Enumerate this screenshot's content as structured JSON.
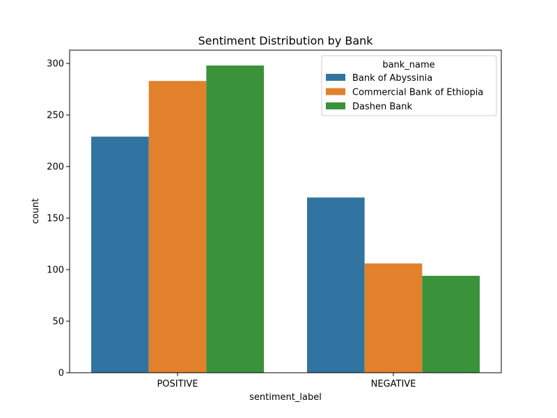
{
  "chart_data": {
    "type": "bar",
    "title": "Sentiment Distribution by Bank",
    "xlabel": "sentiment_label",
    "ylabel": "count",
    "categories": [
      "POSITIVE",
      "NEGATIVE"
    ],
    "series": [
      {
        "name": "Bank of Abyssinia",
        "values": [
          229,
          170
        ],
        "color": "#3274a1"
      },
      {
        "name": "Commercial Bank of Ethiopia",
        "values": [
          283,
          106
        ],
        "color": "#e1812c"
      },
      {
        "name": "Dashen Bank",
        "values": [
          298,
          94
        ],
        "color": "#3a923a"
      }
    ],
    "ylim": [
      0,
      312.9
    ],
    "yticks": [
      0,
      50,
      100,
      150,
      200,
      250,
      300
    ],
    "grid": false,
    "legend": {
      "title": "bank_name",
      "placement": "top-right"
    }
  }
}
